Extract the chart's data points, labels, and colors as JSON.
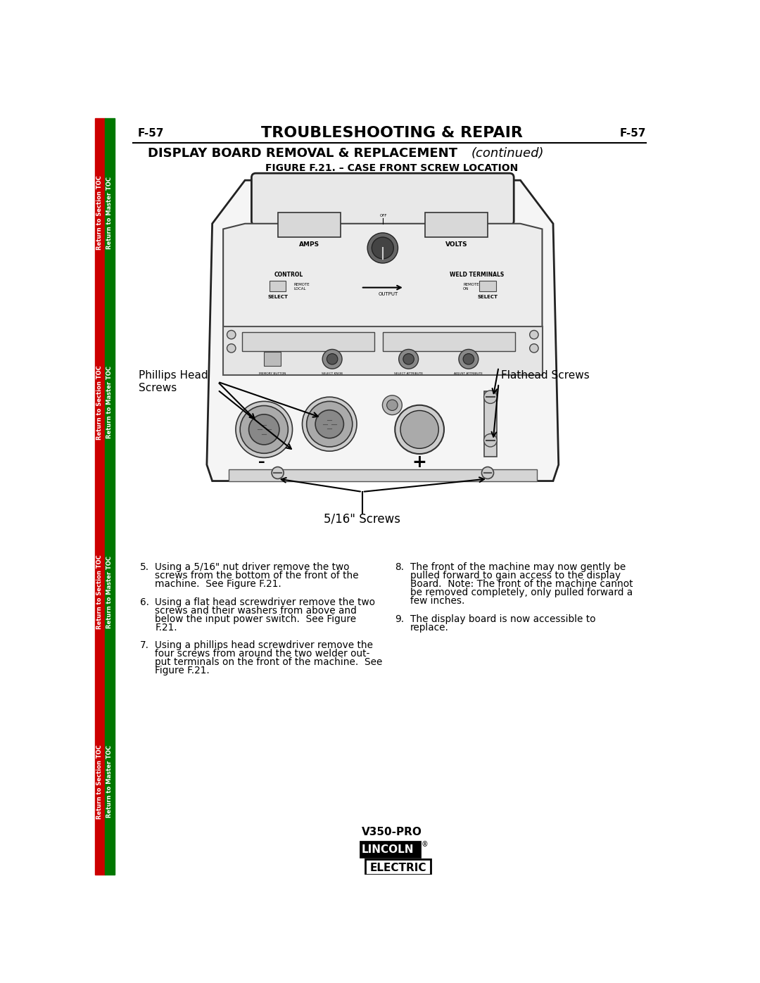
{
  "page_num": "F-57",
  "title1": "TROUBLESHOOTING & REPAIR",
  "title2": "DISPLAY BOARD REMOVAL & REPLACEMENT",
  "title2_italic": "(continued)",
  "figure_title": "FIGURE F.21. – CASE FRONT SCREW LOCATION",
  "label_phillips": "Phillips Head\nScrews",
  "label_flathead": "Flathead Screws",
  "label_516": "5/16\" Screws",
  "sidebar_left_color": "#cc0000",
  "sidebar_right_color": "#007700",
  "sidebar_text": "Return to Section TOC",
  "sidebar_text2": "Return to Master TOC",
  "footer_model": "V350-PRO",
  "bg_color": "#ffffff",
  "machine_bg": "#f0f0f0",
  "machine_edge": "#222222",
  "panel_bg": "#e0e0e0",
  "panel_edge": "#333333"
}
